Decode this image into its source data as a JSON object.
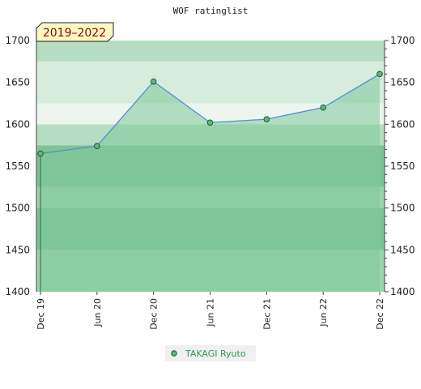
{
  "chart_data": {
    "type": "line",
    "title": "WOF ratinglist",
    "period_label": "2019–2022",
    "x": [
      "Dec 19",
      "Jun 20",
      "Dec 20",
      "Jun 21",
      "Dec 21",
      "Jun 22",
      "Dec 22"
    ],
    "series": [
      {
        "name": "TAKAGI Ryuto",
        "values": [
          1565,
          1574,
          1651,
          1602,
          1606,
          1620,
          1660
        ]
      }
    ],
    "ylim": [
      1400,
      1700
    ],
    "yticks": [
      1400,
      1450,
      1500,
      1550,
      1600,
      1650,
      1700
    ],
    "y_axes": [
      "left",
      "right"
    ],
    "legend_position": "bottom",
    "grid": false,
    "colors": {
      "line": "#4f8fd6",
      "area_fill": "#7fc89a",
      "marker": "#5fb877",
      "marker_stroke": "#1e5a30",
      "band_dark": "#7cc494",
      "band_mid": "#9bd3ac",
      "band_light": "#b5ddc2",
      "band_pale": "#d6ecdc",
      "band_palest": "#ecf6ef",
      "period_bg": "#fff8c4",
      "legend_bg": "#f0f0f0"
    }
  }
}
